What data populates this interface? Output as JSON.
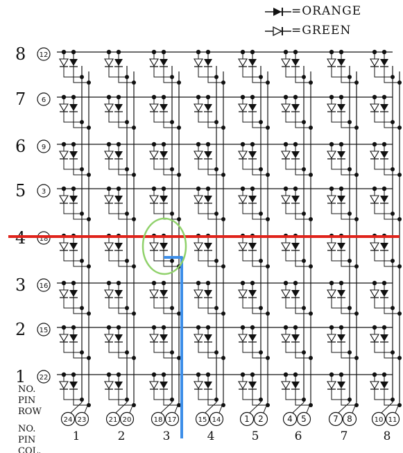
{
  "legend": {
    "orange_label": "=ORANGE",
    "green_label": "=GREEN"
  },
  "rows": [
    {
      "number": "8",
      "pin": "12"
    },
    {
      "number": "7",
      "pin": "6"
    },
    {
      "number": "6",
      "pin": "9"
    },
    {
      "number": "5",
      "pin": "3"
    },
    {
      "number": "4",
      "pin": "18"
    },
    {
      "number": "3",
      "pin": "16"
    },
    {
      "number": "2",
      "pin": "15"
    },
    {
      "number": "1",
      "pin": "22"
    }
  ],
  "row_pin_label": [
    "NO.",
    "PIN",
    "ROW"
  ],
  "col_pin_label": [
    "NO.",
    "PIN",
    "COL."
  ],
  "columns": [
    {
      "number": "1",
      "pins": [
        "24",
        "23"
      ]
    },
    {
      "number": "2",
      "pins": [
        "21",
        "20"
      ]
    },
    {
      "number": "3",
      "pins": [
        "18",
        "17"
      ]
    },
    {
      "number": "4",
      "pins": [
        "15",
        "14"
      ]
    },
    {
      "number": "5",
      "pins": [
        "1",
        "2"
      ]
    },
    {
      "number": "6",
      "pins": [
        "4",
        "5"
      ]
    },
    {
      "number": "7",
      "pins": [
        "7",
        "8"
      ]
    },
    {
      "number": "8",
      "pins": [
        "10",
        "11"
      ]
    }
  ],
  "annotations": {
    "highlight_row_color": "#e0231b",
    "highlight_col_color": "#3d8ee8",
    "circle_color": "#8fd16a"
  }
}
